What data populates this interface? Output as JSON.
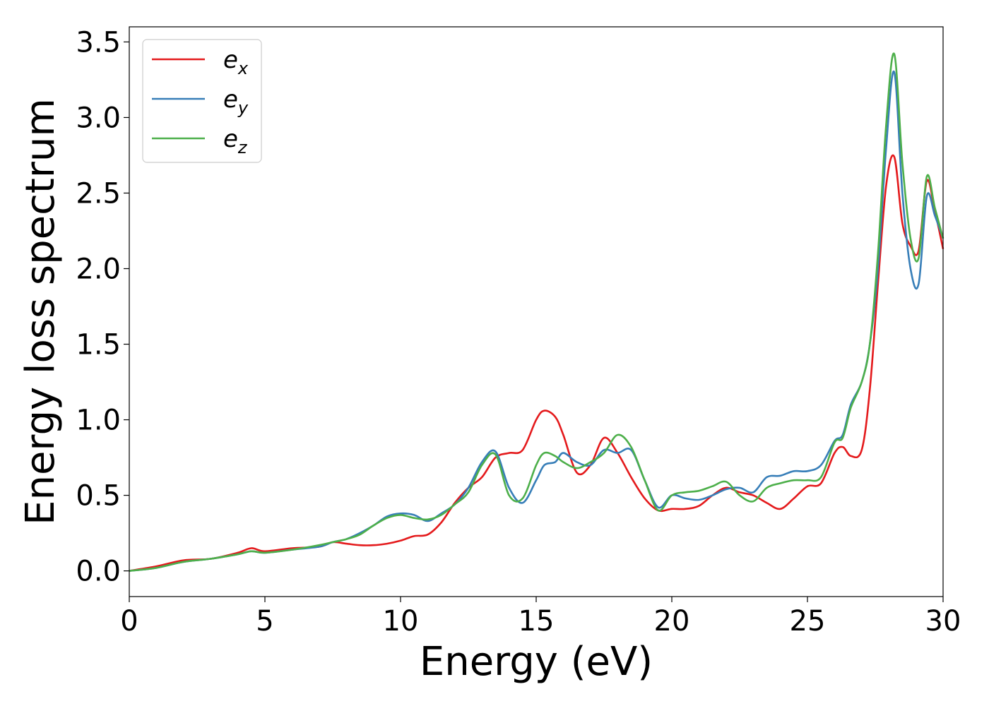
{
  "chart_data": {
    "type": "line",
    "title": "",
    "xlabel": "Energy (eV)",
    "ylabel": "Energy loss spectrum",
    "xlim": [
      0,
      30
    ],
    "ylim": [
      -0.17,
      3.6
    ],
    "xticks": [
      "0",
      "5",
      "10",
      "15",
      "20",
      "25",
      "30"
    ],
    "yticks": [
      "0.0",
      "0.5",
      "1.0",
      "1.5",
      "2.0",
      "2.5",
      "3.0",
      "3.5"
    ],
    "grid": false,
    "legend_position": "top-left",
    "series": [
      {
        "name": "e_x",
        "legend_base": "e",
        "legend_sub": "x",
        "color": "#e41a1c",
        "x": [
          0,
          1,
          2,
          3,
          4,
          4.5,
          5,
          6,
          7,
          7.5,
          8,
          8.5,
          9,
          9.5,
          10,
          10.5,
          11,
          11.5,
          12,
          12.5,
          13,
          13.5,
          14,
          14.5,
          15,
          15.3,
          15.7,
          16,
          16.5,
          17,
          17.5,
          18,
          18.5,
          19,
          19.5,
          20,
          20.5,
          21,
          21.5,
          22,
          22.5,
          23,
          23.5,
          24,
          24.5,
          25,
          25.5,
          26,
          26.3,
          26.6,
          27,
          27.3,
          27.6,
          27.9,
          28.2,
          28.5,
          28.8,
          29.1,
          29.4,
          29.7,
          30
        ],
        "y": [
          0.0,
          0.03,
          0.07,
          0.08,
          0.12,
          0.15,
          0.13,
          0.15,
          0.16,
          0.19,
          0.18,
          0.17,
          0.17,
          0.18,
          0.2,
          0.23,
          0.24,
          0.32,
          0.45,
          0.55,
          0.62,
          0.75,
          0.78,
          0.8,
          1.0,
          1.06,
          1.02,
          0.9,
          0.65,
          0.7,
          0.88,
          0.78,
          0.62,
          0.48,
          0.4,
          0.41,
          0.41,
          0.43,
          0.5,
          0.55,
          0.52,
          0.5,
          0.45,
          0.41,
          0.48,
          0.56,
          0.58,
          0.78,
          0.82,
          0.76,
          0.8,
          1.2,
          1.9,
          2.55,
          2.74,
          2.3,
          2.15,
          2.12,
          2.58,
          2.38,
          2.13
        ]
      },
      {
        "name": "e_y",
        "legend_base": "e",
        "legend_sub": "y",
        "color": "#377eb8",
        "x": [
          0,
          1,
          2,
          3,
          4,
          4.5,
          5,
          6,
          7,
          7.5,
          8,
          8.5,
          9,
          9.5,
          10,
          10.5,
          11,
          11.5,
          12,
          12.5,
          13,
          13.5,
          14,
          14.5,
          15,
          15.3,
          15.7,
          16,
          16.5,
          17,
          17.5,
          18,
          18.5,
          19,
          19.5,
          20,
          20.5,
          21,
          21.5,
          22,
          22.5,
          23,
          23.5,
          24,
          24.5,
          25,
          25.5,
          26,
          26.3,
          26.6,
          27,
          27.3,
          27.6,
          27.9,
          28.2,
          28.5,
          28.8,
          29.1,
          29.4,
          29.7,
          30
        ],
        "y": [
          0.0,
          0.02,
          0.06,
          0.08,
          0.11,
          0.13,
          0.12,
          0.14,
          0.16,
          0.19,
          0.21,
          0.25,
          0.3,
          0.36,
          0.38,
          0.37,
          0.33,
          0.38,
          0.44,
          0.55,
          0.72,
          0.79,
          0.55,
          0.45,
          0.6,
          0.7,
          0.72,
          0.78,
          0.72,
          0.7,
          0.8,
          0.78,
          0.8,
          0.6,
          0.42,
          0.5,
          0.48,
          0.47,
          0.5,
          0.54,
          0.55,
          0.52,
          0.62,
          0.63,
          0.66,
          0.66,
          0.7,
          0.86,
          0.9,
          1.1,
          1.25,
          1.5,
          2.0,
          2.8,
          3.3,
          2.5,
          2.0,
          1.9,
          2.48,
          2.35,
          2.2
        ]
      },
      {
        "name": "e_z",
        "legend_base": "e",
        "legend_sub": "z",
        "color": "#4daf4a",
        "x": [
          0,
          1,
          2,
          3,
          4,
          4.5,
          5,
          6,
          7,
          7.5,
          8,
          8.5,
          9,
          9.5,
          10,
          10.5,
          11,
          11.5,
          12,
          12.5,
          13,
          13.5,
          14,
          14.5,
          15,
          15.3,
          15.7,
          16,
          16.5,
          17,
          17.5,
          18,
          18.5,
          19,
          19.5,
          20,
          20.5,
          21,
          21.5,
          22,
          22.5,
          23,
          23.5,
          24,
          24.5,
          25,
          25.5,
          26,
          26.3,
          26.6,
          27,
          27.3,
          27.6,
          27.9,
          28.2,
          28.5,
          28.8,
          29.1,
          29.4,
          29.7,
          30
        ],
        "y": [
          0.0,
          0.02,
          0.06,
          0.08,
          0.11,
          0.13,
          0.12,
          0.14,
          0.17,
          0.19,
          0.21,
          0.24,
          0.3,
          0.35,
          0.37,
          0.35,
          0.34,
          0.37,
          0.44,
          0.52,
          0.7,
          0.77,
          0.5,
          0.48,
          0.7,
          0.78,
          0.76,
          0.72,
          0.68,
          0.72,
          0.78,
          0.9,
          0.82,
          0.6,
          0.4,
          0.5,
          0.52,
          0.53,
          0.56,
          0.59,
          0.5,
          0.46,
          0.55,
          0.58,
          0.6,
          0.6,
          0.62,
          0.85,
          0.88,
          1.08,
          1.25,
          1.5,
          2.1,
          2.95,
          3.42,
          2.7,
          2.2,
          2.07,
          2.61,
          2.4,
          2.2
        ]
      }
    ]
  }
}
